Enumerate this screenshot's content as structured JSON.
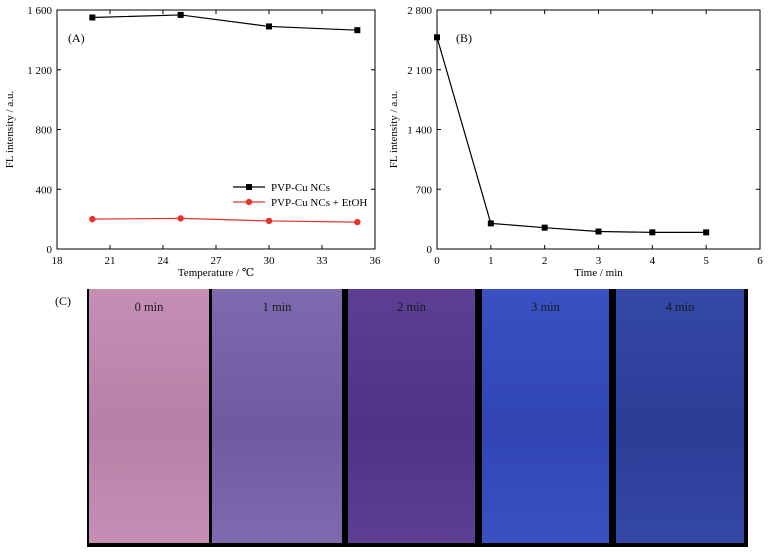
{
  "chart_data": [
    {
      "type": "line",
      "panel_label": "(A)",
      "xlabel": "Temperature / ℃",
      "ylabel": "FL intensity / a.u.",
      "xlim": [
        18,
        36
      ],
      "ylim": [
        0,
        1600
      ],
      "x_ticks": [
        18,
        21,
        24,
        27,
        30,
        33,
        36
      ],
      "y_ticks": [
        0,
        400,
        800,
        1200,
        1600
      ],
      "y_tick_labels": [
        "0",
        "400",
        "800",
        "1 200",
        "1 600"
      ],
      "legend_position": "lower-right",
      "grid": false,
      "series": [
        {
          "name": "PVP-Cu NCs",
          "color": "#000000",
          "marker": "square",
          "x": [
            20,
            25,
            30,
            35
          ],
          "y": [
            1550,
            1567,
            1490,
            1465
          ]
        },
        {
          "name": "PVP-Cu NCs + EtOH",
          "color": "#e8322a",
          "marker": "circle",
          "x": [
            20,
            25,
            30,
            35
          ],
          "y": [
            200,
            205,
            188,
            180
          ]
        }
      ]
    },
    {
      "type": "line",
      "panel_label": "(B)",
      "xlabel": "Time / min",
      "ylabel": "FL intensity / a.u.",
      "xlim": [
        0,
        6
      ],
      "ylim": [
        0,
        2800
      ],
      "x_ticks": [
        0,
        1,
        2,
        3,
        4,
        5,
        6
      ],
      "y_ticks": [
        0,
        700,
        1400,
        2100,
        2800
      ],
      "y_tick_labels": [
        "0",
        "700",
        "1 400",
        "2 100",
        "2 800"
      ],
      "grid": false,
      "series": [
        {
          "color": "#000000",
          "marker": "square",
          "x": [
            0,
            1,
            2,
            3,
            4,
            5
          ],
          "y": [
            2480,
            300,
            250,
            205,
            195,
            195
          ]
        }
      ]
    }
  ],
  "photos": {
    "label": "(C)",
    "panels": [
      {
        "label": "0 min",
        "color": "#c68eb4",
        "shade": "#b681a6"
      },
      {
        "label": "1 min",
        "color": "#7e6aae",
        "shade": "#6e5aa0"
      },
      {
        "label": "2 min",
        "color": "#5c3f93",
        "shade": "#4e3386"
      },
      {
        "label": "3 min",
        "color": "#3a51c4",
        "shade": "#3145b4"
      },
      {
        "label": "4 min",
        "color": "#3448a7",
        "shade": "#2c3d96"
      }
    ]
  }
}
